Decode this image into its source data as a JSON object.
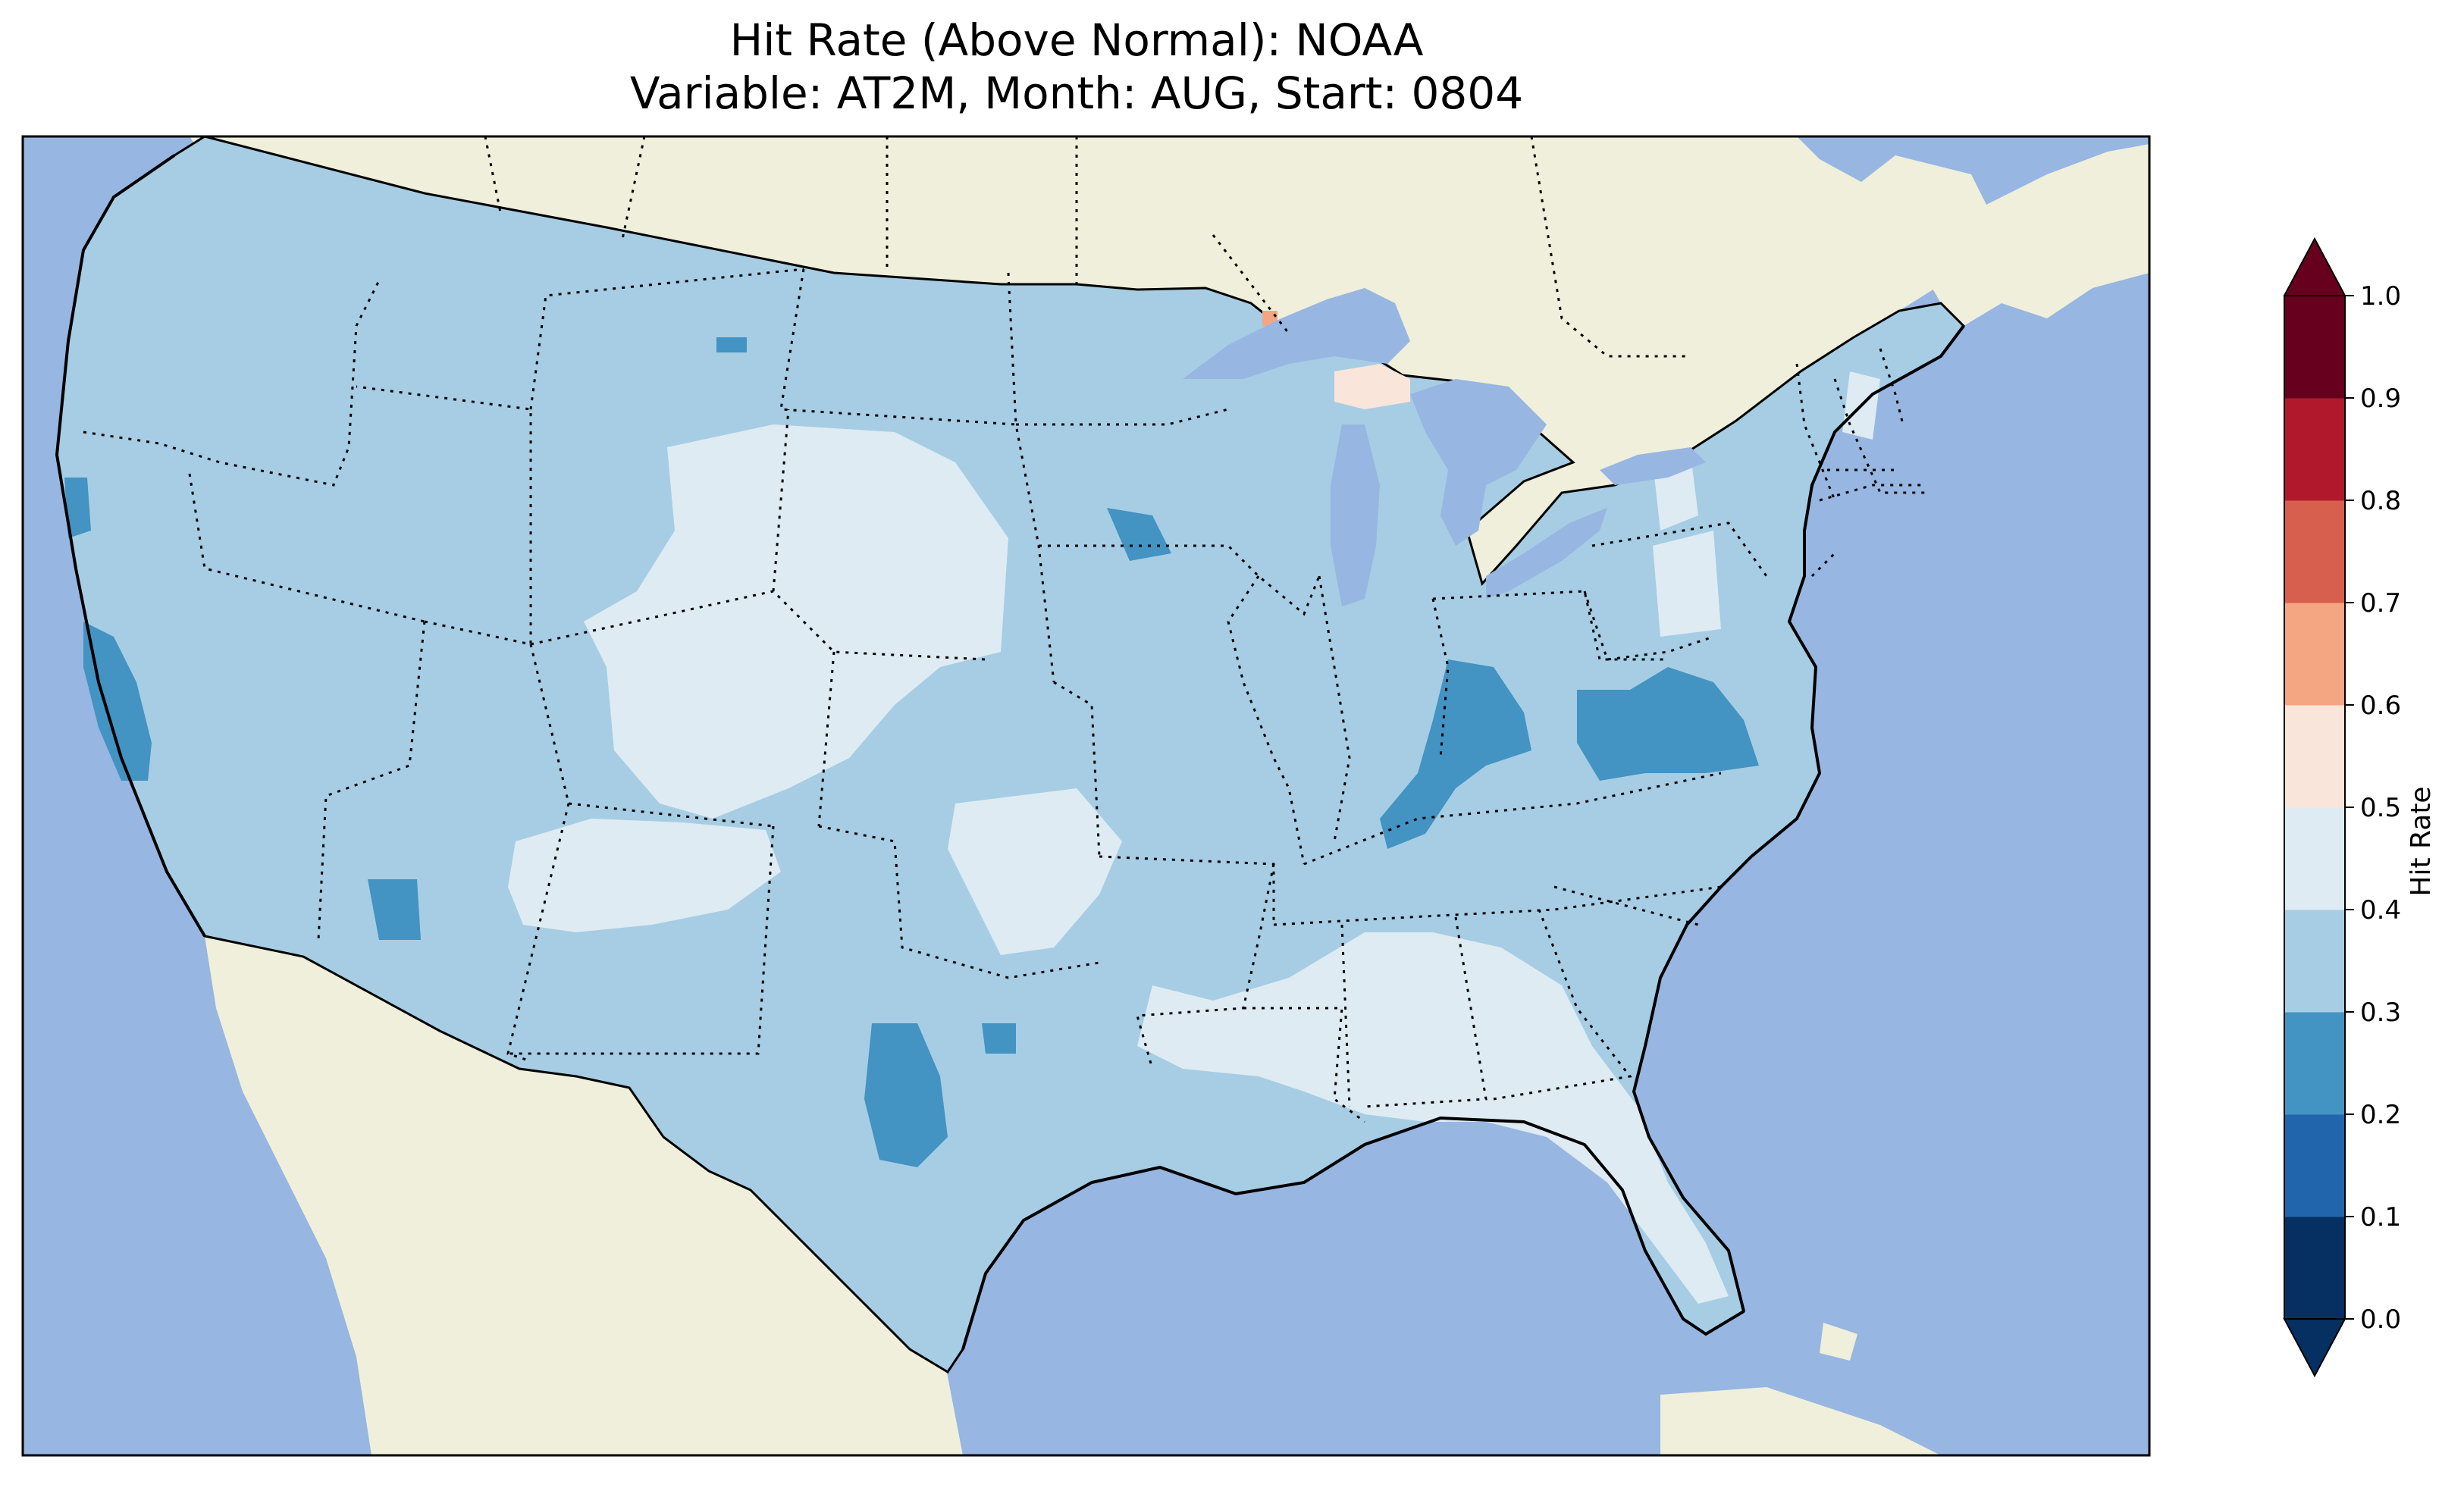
{
  "title": {
    "line1": "Hit Rate (Above Normal): NOAA",
    "line2": "Variable: AT2M, Month: AUG, Start: 0804"
  },
  "map": {
    "projection": "Lambert Conformal",
    "region": "Contiguous United States",
    "colors": {
      "ocean": "#97b6e1",
      "land": "#efefdb",
      "border": "#000000"
    },
    "fields": [
      {
        "region": "most of CONUS",
        "value_range": [
          0.3,
          0.4
        ]
      },
      {
        "region": "Wyoming / Colorado / Nebraska / SW Kansas / Oklahoma / New Mexico",
        "value_range": [
          0.4,
          0.5
        ]
      },
      {
        "region": "Mississippi / Alabama / Georgia / Florida",
        "value_range": [
          0.4,
          0.5
        ]
      },
      {
        "region": "Coastal California",
        "value_range": [
          0.2,
          0.3
        ]
      },
      {
        "region": "Kentucky / Tennessee",
        "value_range": [
          0.2,
          0.3
        ]
      },
      {
        "region": "Virginia / West Virginia",
        "value_range": [
          0.2,
          0.3
        ]
      },
      {
        "region": "West Texas",
        "value_range": [
          0.2,
          0.3
        ]
      },
      {
        "region": "Upper Michigan",
        "value_range": [
          0.5,
          0.6
        ]
      }
    ]
  },
  "colorbar": {
    "label": "Hit Rate",
    "ticks": [
      "0.0",
      "0.1",
      "0.2",
      "0.3",
      "0.4",
      "0.5",
      "0.6",
      "0.7",
      "0.8",
      "0.9",
      "1.0"
    ],
    "colors": [
      "#053061",
      "#2166ac",
      "#4393c3",
      "#a6cde3",
      "#deebf3",
      "#fae5da",
      "#f4a582",
      "#d6604d",
      "#b2182b",
      "#67001f"
    ],
    "under_color": "#053061",
    "over_color": "#67001f",
    "extend": "both"
  }
}
